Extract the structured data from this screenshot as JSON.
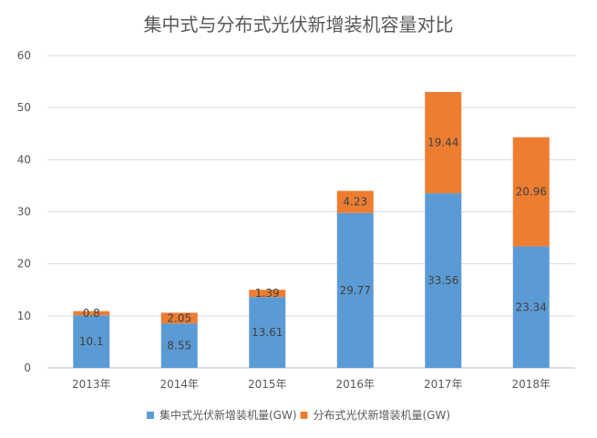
{
  "chart_data": {
    "type": "bar",
    "stacked": true,
    "title": "集中式与分布式光伏新增装机容量对比",
    "categories": [
      "2013年",
      "2014年",
      "2015年",
      "2016年",
      "2017年",
      "2018年"
    ],
    "series": [
      {
        "name": "集中式光伏新增装机量(GW)",
        "color": "#5b9bd5",
        "values": [
          10.1,
          8.55,
          13.61,
          29.77,
          33.56,
          23.34
        ]
      },
      {
        "name": "分布式光伏新增装机量(GW)",
        "color": "#ed7d31",
        "values": [
          0.8,
          2.05,
          1.39,
          4.23,
          19.44,
          20.96
        ]
      }
    ],
    "data_labels": [
      [
        "10.1",
        "8.55",
        "13.61",
        "29.77",
        "33.56",
        "23.34"
      ],
      [
        "0.8",
        "2.05",
        "1.39",
        "4.23",
        "19.44",
        "20.96"
      ]
    ],
    "ylim": [
      0,
      60
    ],
    "yticks": [
      "0",
      "10",
      "20",
      "30",
      "40",
      "50",
      "60"
    ],
    "xlabel": "",
    "ylabel": "",
    "grid": true,
    "legend_position": "bottom"
  }
}
